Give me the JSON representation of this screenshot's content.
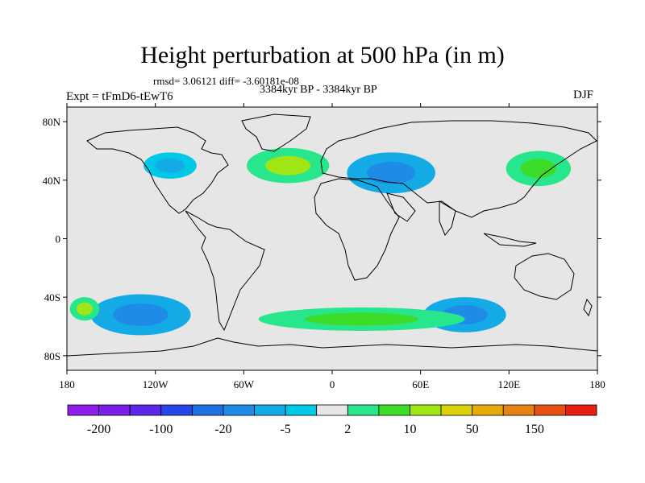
{
  "title": "Height perturbation at 500 hPa (in m)",
  "subtitle_stats": "rmsd= 3.06121 diff= -3.60181e-08",
  "period": "3384kyr BP - 3384kyr BP",
  "experiment": "Expt = tFmD6-tEwT6",
  "season": "DJF",
  "map": {
    "projection": "cylindrical-equidistant",
    "lon_range": [
      -180,
      180
    ],
    "lat_range": [
      -90,
      90
    ],
    "background_color": "#e6e6e6",
    "y_ticks": [
      {
        "lat": 80,
        "label": "80N"
      },
      {
        "lat": 40,
        "label": "40N"
      },
      {
        "lat": 0,
        "label": "0"
      },
      {
        "lat": -40,
        "label": "40S"
      },
      {
        "lat": -80,
        "label": "80S"
      }
    ],
    "x_ticks": [
      {
        "lon": -180,
        "label": "180"
      },
      {
        "lon": -120,
        "label": "120W"
      },
      {
        "lon": -60,
        "label": "60W"
      },
      {
        "lon": 0,
        "label": "0"
      },
      {
        "lon": 60,
        "label": "60E"
      },
      {
        "lon": 120,
        "label": "120E"
      },
      {
        "lon": 180,
        "label": "180"
      }
    ]
  },
  "colorbar": {
    "colors": [
      "#8c1ee6",
      "#7820e6",
      "#5a28e6",
      "#2846e6",
      "#1e6ee6",
      "#1e8ce6",
      "#14aae6",
      "#00c8e6",
      "#e6e6e6",
      "#28e68c",
      "#3cdc28",
      "#a0e614",
      "#dcd20a",
      "#e6aa0a",
      "#e68214",
      "#e65014",
      "#e61e14"
    ],
    "labels": [
      "-200",
      "-100",
      "-20",
      "-5",
      "2",
      "10",
      "50",
      "150"
    ]
  },
  "anomalies": [
    {
      "lon": -130,
      "lat": -52,
      "level": "negative-strong",
      "rlon": 34,
      "rlat": 14
    },
    {
      "lon": 90,
      "lat": -52,
      "level": "negative-strong",
      "rlon": 28,
      "rlat": 12
    },
    {
      "lon": 40,
      "lat": 45,
      "level": "negative-strong",
      "rlon": 30,
      "rlat": 14
    },
    {
      "lon": -110,
      "lat": 50,
      "level": "negative",
      "rlon": 18,
      "rlat": 9
    },
    {
      "lon": -30,
      "lat": 50,
      "level": "positive-strong",
      "rlon": 28,
      "rlat": 12
    },
    {
      "lon": -168,
      "lat": -48,
      "level": "positive-strong",
      "rlon": 10,
      "rlat": 8
    },
    {
      "lon": 140,
      "lat": 48,
      "level": "positive",
      "rlon": 22,
      "rlat": 12
    },
    {
      "lon": 20,
      "lat": -55,
      "level": "positive",
      "rlon": 70,
      "rlat": 8
    }
  ]
}
